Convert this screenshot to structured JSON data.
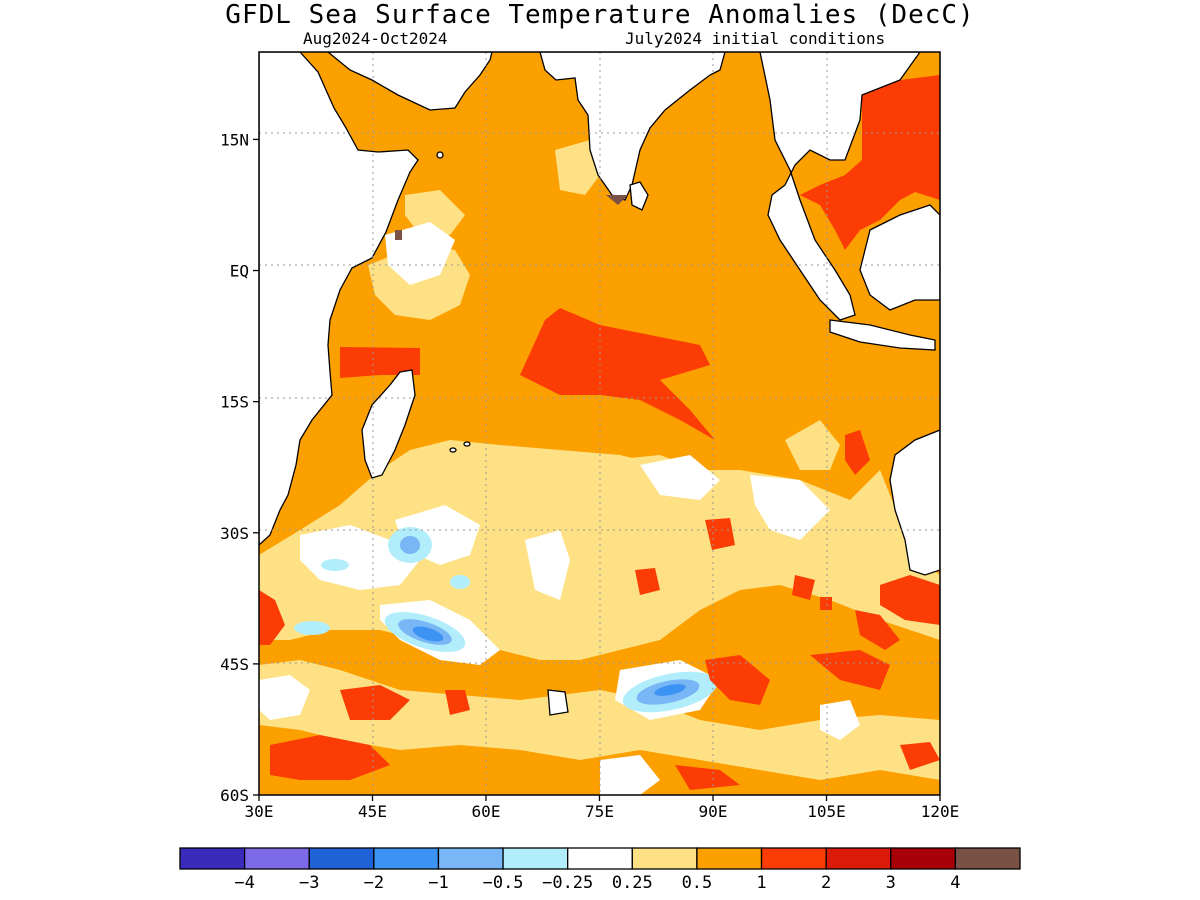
{
  "title": "GFDL Sea Surface Temperature Anomalies (DecC)",
  "period": "Aug2024-Oct2024",
  "initial_conditions": "July2024 initial conditions",
  "map": {
    "lon_range": [
      30,
      120
    ],
    "lat_range": [
      -60,
      25
    ],
    "lon_ticks": [
      "30E",
      "45E",
      "60E",
      "75E",
      "90E",
      "105E",
      "120E"
    ],
    "lat_ticks": [
      "15N",
      "EQ",
      "15S",
      "30S",
      "45S",
      "60S"
    ],
    "grid": true
  },
  "colorbar": {
    "colors": [
      "#3b2bbd",
      "#7d6ae9",
      "#1f62d8",
      "#3d93f4",
      "#78b6f6",
      "#b1edfa",
      "#ffffff",
      "#fde184",
      "#fca000",
      "#fc3c05",
      "#dc1a0a",
      "#a80007",
      "#7a5245"
    ],
    "labels": [
      "−4",
      "−3",
      "−2",
      "−1",
      "−0.5",
      "−0.25",
      "0.25",
      "0.5",
      "1",
      "2",
      "3",
      "4"
    ]
  }
}
